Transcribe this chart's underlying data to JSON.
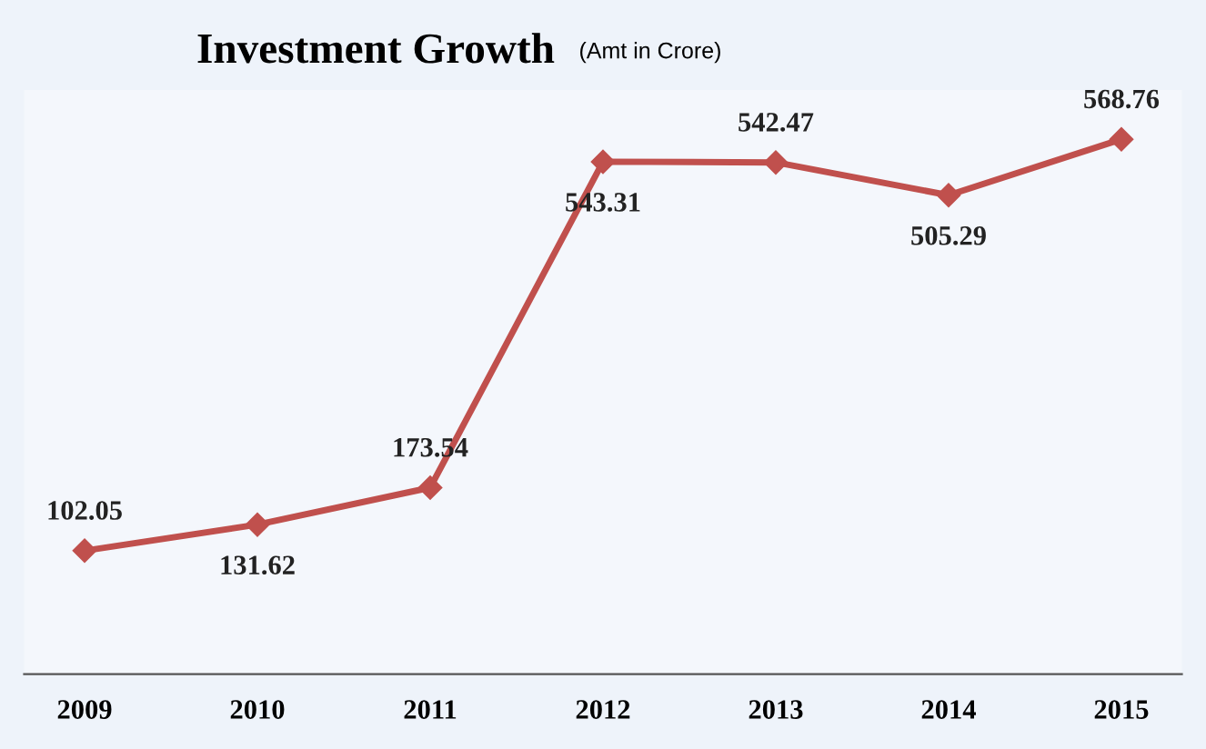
{
  "chart_data": {
    "type": "line",
    "title": "Investment Growth",
    "subtitle": "(Amt in Crore)",
    "categories": [
      "2009",
      "2010",
      "2011",
      "2012",
      "2013",
      "2014",
      "2015"
    ],
    "series": [
      {
        "color": "#c0504d",
        "values": [
          102.05,
          131.62,
          173.54,
          543.31,
          542.47,
          505.29,
          568.76
        ]
      }
    ],
    "data_labels": true,
    "marker": "diamond",
    "line_style": "solid",
    "grid": false,
    "legend": false
  }
}
